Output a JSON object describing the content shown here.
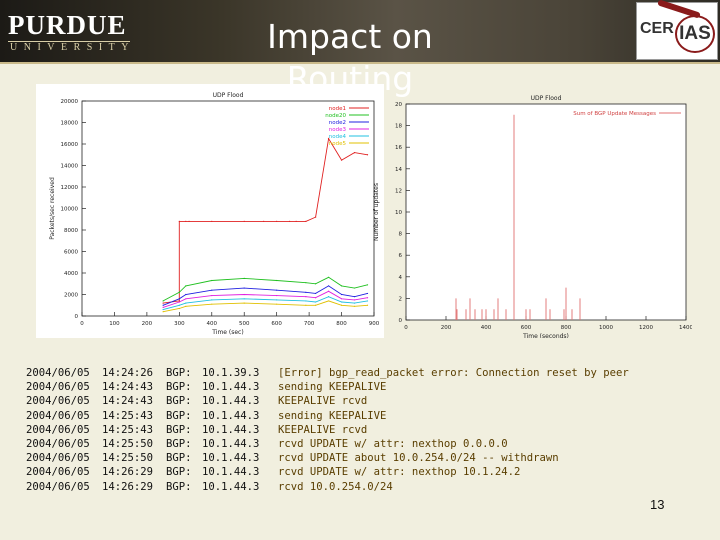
{
  "header": {
    "title": "Impact on Routing",
    "purdue_word": "PURDUE",
    "purdue_sub": "UNIVERSITY",
    "cerias_left": "CER",
    "cerias_right": "IAS"
  },
  "chart_data": [
    {
      "type": "line",
      "title": "UDP Flood",
      "xlabel": "Time (sec)",
      "ylabel": "Packets/sec received",
      "xlim": [
        0,
        900
      ],
      "ylim": [
        0,
        20000
      ],
      "xticks": [
        0,
        100,
        200,
        300,
        400,
        500,
        600,
        700,
        800,
        900
      ],
      "yticks": [
        0,
        2000,
        4000,
        6000,
        8000,
        10000,
        12000,
        14000,
        16000,
        18000,
        20000
      ],
      "legend_position": "top-right",
      "series": [
        {
          "name": "node1",
          "color": "#e02020",
          "x": [
            250,
            300,
            300,
            320,
            330,
            400,
            500,
            560,
            600,
            640,
            660,
            690,
            720,
            760,
            800,
            840,
            880
          ],
          "y": [
            1200,
            1400,
            8800,
            8800,
            8800,
            8800,
            8800,
            8800,
            8800,
            8800,
            8800,
            8800,
            9200,
            16500,
            14500,
            15200,
            15000
          ]
        },
        {
          "name": "node20",
          "color": "#20c020",
          "x": [
            250,
            300,
            320,
            400,
            500,
            600,
            690,
            720,
            760,
            800,
            840,
            880
          ],
          "y": [
            1400,
            2200,
            2800,
            3300,
            3500,
            3300,
            3100,
            3000,
            3600,
            2800,
            2600,
            2900
          ]
        },
        {
          "name": "node2",
          "color": "#2020e0",
          "x": [
            250,
            300,
            320,
            400,
            500,
            600,
            690,
            720,
            760,
            800,
            840,
            880
          ],
          "y": [
            1000,
            1600,
            2000,
            2400,
            2600,
            2400,
            2200,
            2100,
            2800,
            2000,
            1800,
            2100
          ]
        },
        {
          "name": "node3",
          "color": "#e020e0",
          "x": [
            250,
            300,
            320,
            400,
            500,
            600,
            690,
            720,
            760,
            800,
            840,
            880
          ],
          "y": [
            800,
            1300,
            1600,
            1900,
            2000,
            1900,
            1800,
            1700,
            2300,
            1600,
            1500,
            1700
          ]
        },
        {
          "name": "node4",
          "color": "#20c0e0",
          "x": [
            250,
            300,
            320,
            400,
            500,
            600,
            690,
            720,
            760,
            800,
            840,
            880
          ],
          "y": [
            600,
            1000,
            1200,
            1500,
            1600,
            1500,
            1400,
            1300,
            1800,
            1300,
            1200,
            1400
          ]
        },
        {
          "name": "node5",
          "color": "#e0c000",
          "x": [
            250,
            300,
            320,
            400,
            500,
            600,
            690,
            720,
            760,
            800,
            840,
            880
          ],
          "y": [
            400,
            700,
            900,
            1100,
            1200,
            1100,
            1000,
            1000,
            1400,
            1000,
            900,
            1000
          ]
        }
      ]
    },
    {
      "type": "bar",
      "title": "UDP Flood",
      "xlabel": "Time (seconds)",
      "ylabel": "Number of updates",
      "xlim": [
        0,
        1400
      ],
      "ylim": [
        0,
        20
      ],
      "xticks": [
        0,
        200,
        400,
        600,
        800,
        1000,
        1200,
        1400
      ],
      "yticks": [
        0,
        2,
        4,
        6,
        8,
        10,
        12,
        14,
        16,
        18,
        20
      ],
      "legend_position": "top-right",
      "series": [
        {
          "name": "Sum of BGP Update Messages",
          "color": "#e07070",
          "x": [
            250,
            255,
            300,
            320,
            345,
            380,
            400,
            440,
            460,
            500,
            540,
            600,
            620,
            700,
            720,
            790,
            800,
            830,
            870
          ],
          "values": [
            2,
            1,
            1,
            2,
            1,
            1,
            1,
            1,
            2,
            1,
            19,
            1,
            1,
            2,
            1,
            1,
            3,
            1,
            2
          ]
        }
      ]
    }
  ],
  "log": {
    "rows": [
      {
        "date": "2004/06/05",
        "time": "14:24:26",
        "proc": "BGP:",
        "ip": "10.1.39.3",
        "msg": "[Error] bgp_read_packet error: Connection reset by peer"
      },
      {
        "date": "2004/06/05",
        "time": "14:24:43",
        "proc": "BGP:",
        "ip": "10.1.44.3",
        "msg": "sending KEEPALIVE"
      },
      {
        "date": "2004/06/05",
        "time": "14:24:43",
        "proc": "BGP:",
        "ip": "10.1.44.3",
        "msg": "KEEPALIVE rcvd"
      },
      {
        "date": "2004/06/05",
        "time": "14:25:43",
        "proc": "BGP:",
        "ip": "10.1.44.3",
        "msg": "sending KEEPALIVE"
      },
      {
        "date": "2004/06/05",
        "time": "14:25:43",
        "proc": "BGP:",
        "ip": "10.1.44.3",
        "msg": "KEEPALIVE rcvd"
      },
      {
        "date": "2004/06/05",
        "time": "14:25:50",
        "proc": "BGP:",
        "ip": "10.1.44.3",
        "msg": "rcvd UPDATE w/ attr: nexthop 0.0.0.0"
      },
      {
        "date": "2004/06/05",
        "time": "14:25:50",
        "proc": "BGP:",
        "ip": "10.1.44.3",
        "msg": "rcvd UPDATE about 10.0.254.0/24 -- withdrawn"
      },
      {
        "date": "2004/06/05",
        "time": "14:26:29",
        "proc": "BGP:",
        "ip": "10.1.44.3",
        "msg": "rcvd UPDATE w/ attr: nexthop 10.1.24.2"
      },
      {
        "date": "2004/06/05",
        "time": "14:26:29",
        "proc": "BGP:",
        "ip": "10.1.44.3",
        "msg": "rcvd 10.0.254.0/24"
      }
    ]
  },
  "footer": {
    "page_number": "13"
  }
}
